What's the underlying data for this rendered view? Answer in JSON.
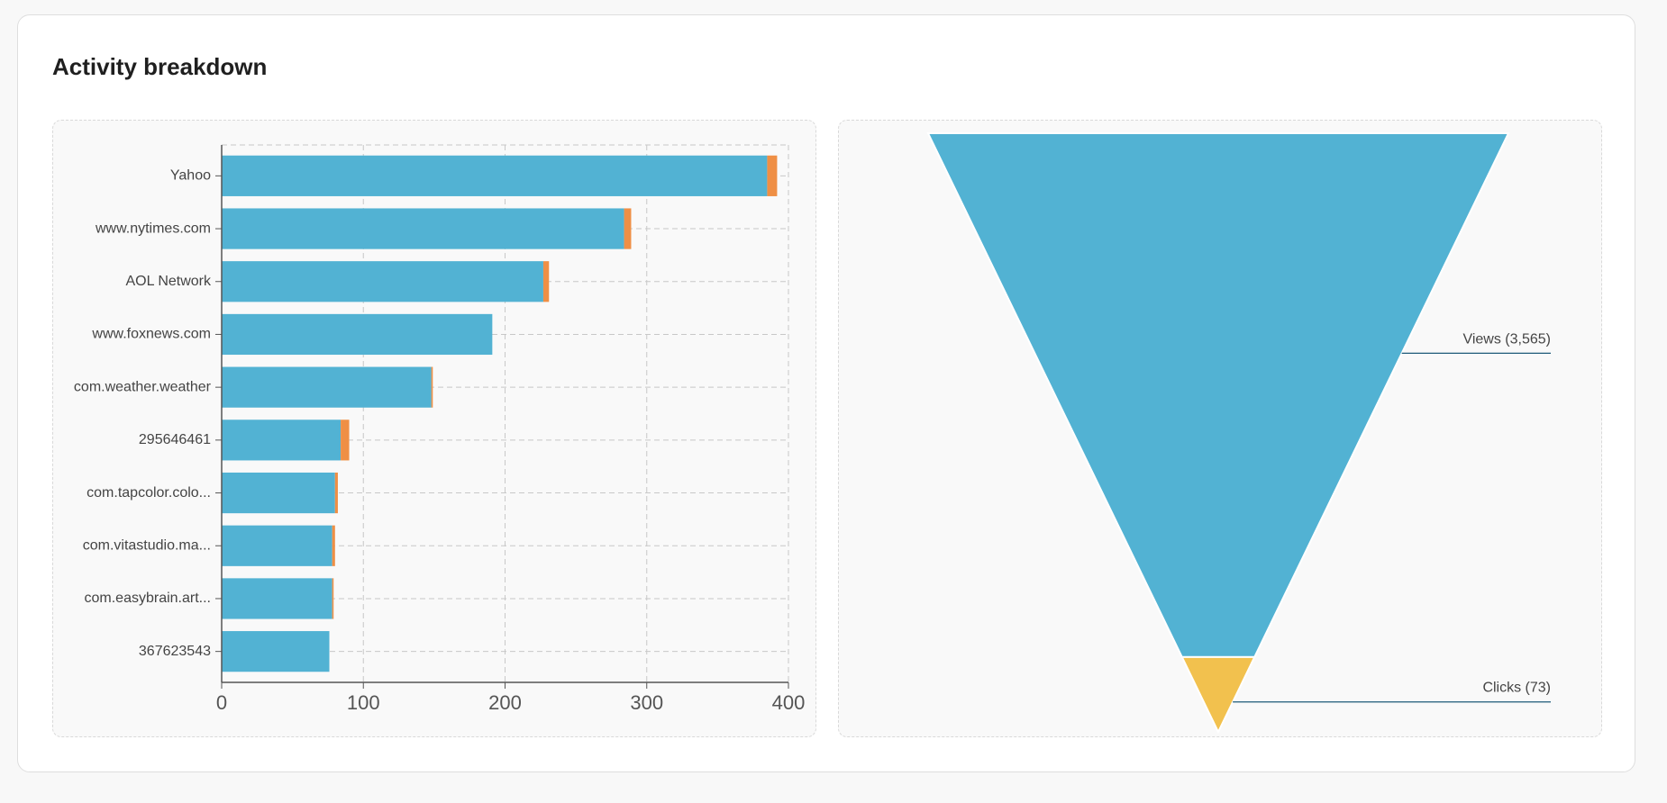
{
  "card": {
    "title": "Activity breakdown"
  },
  "colors": {
    "views": "#52b2d3",
    "clicks": "#ef8f45",
    "funnel_top": "#52b2d3",
    "funnel_bottom": "#f2c14e"
  },
  "chart_data": [
    {
      "type": "bar",
      "orientation": "horizontal",
      "stacked": true,
      "categories": [
        "Yahoo",
        "www.nytimes.com",
        "AOL Network",
        "www.foxnews.com",
        "com.weather.weather",
        "295646461",
        "com.tapcolor.colo...",
        "com.vitastudio.ma...",
        "com.easybrain.art...",
        "367623543"
      ],
      "series": [
        {
          "values": [
            385,
            284,
            227,
            191,
            148,
            84,
            80,
            78,
            78,
            76
          ]
        },
        {
          "values": [
            7,
            5,
            4,
            0,
            1,
            6,
            2,
            2,
            1,
            0
          ]
        }
      ],
      "xlim": [
        0,
        400
      ],
      "xticks": [
        0,
        100,
        200,
        300,
        400
      ],
      "grid": true
    },
    {
      "type": "funnel",
      "stages": [
        {
          "label": "Views (3,565)",
          "value": 3565
        },
        {
          "label": "Clicks (73)",
          "value": 73
        }
      ]
    }
  ]
}
